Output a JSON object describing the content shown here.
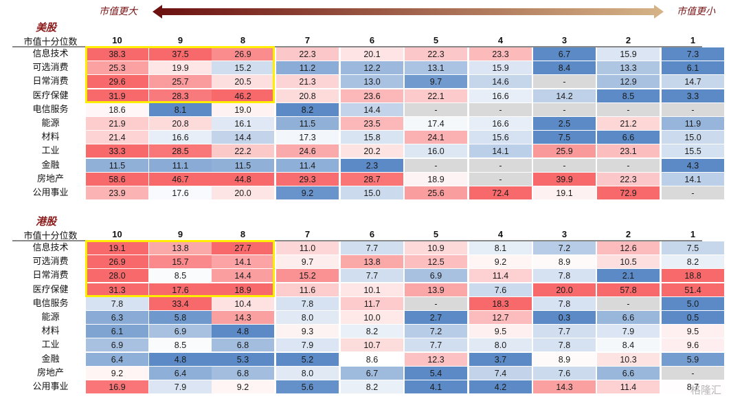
{
  "header": {
    "left_label": "市值更大",
    "right_label": "市值更小",
    "arrow_colors": [
      "#6b0f0f",
      "#d6b487"
    ]
  },
  "chart_data": [
    {
      "type": "heatmap",
      "title": "美股",
      "row_header": "市值十分位数",
      "columns": [
        "10",
        "9",
        "8",
        "7",
        "6",
        "5",
        "4",
        "3",
        "2",
        "1"
      ],
      "rows": [
        {
          "label": "信息技术",
          "values": [
            "38.3",
            "37.5",
            "26.9",
            "22.3",
            "20.1",
            "22.3",
            "23.3",
            "6.7",
            "15.9",
            "7.3"
          ]
        },
        {
          "label": "可选消费",
          "values": [
            "25.3",
            "19.9",
            "15.2",
            "11.2",
            "12.2",
            "13.1",
            "15.9",
            "8.4",
            "13.3",
            "6.1"
          ]
        },
        {
          "label": "日常消费",
          "values": [
            "29.6",
            "25.7",
            "20.5",
            "21.3",
            "13.0",
            "9.7",
            "14.6",
            "-",
            "12.9",
            "14.7"
          ]
        },
        {
          "label": "医疗保健",
          "values": [
            "31.9",
            "28.3",
            "46.2",
            "20.8",
            "23.6",
            "22.1",
            "16.6",
            "14.2",
            "8.5",
            "3.3"
          ]
        },
        {
          "label": "电信服务",
          "values": [
            "18.6",
            "8.1",
            "19.0",
            "8.2",
            "14.4",
            "-",
            "-",
            "-",
            "-",
            "-"
          ]
        },
        {
          "label": "能源",
          "values": [
            "21.9",
            "20.8",
            "16.1",
            "11.5",
            "23.5",
            "17.4",
            "16.6",
            "2.5",
            "21.2",
            "11.9"
          ]
        },
        {
          "label": "材料",
          "values": [
            "21.4",
            "16.6",
            "14.4",
            "17.3",
            "15.8",
            "24.1",
            "15.6",
            "7.5",
            "6.6",
            "15.0"
          ]
        },
        {
          "label": "工业",
          "values": [
            "33.3",
            "28.5",
            "22.2",
            "24.6",
            "20.2",
            "16.0",
            "14.1",
            "25.9",
            "23.1",
            "15.5"
          ]
        },
        {
          "label": "金融",
          "values": [
            "11.5",
            "11.1",
            "11.5",
            "11.4",
            "2.3",
            "-",
            "-",
            "-",
            "-",
            "4.3"
          ]
        },
        {
          "label": "房地产",
          "values": [
            "58.6",
            "46.7",
            "44.8",
            "29.3",
            "28.7",
            "18.9",
            "-",
            "39.9",
            "22.3",
            "14.1"
          ]
        },
        {
          "label": "公用事业",
          "values": [
            "23.9",
            "17.6",
            "20.0",
            "9.2",
            "15.0",
            "25.6",
            "72.4",
            "19.1",
            "72.9",
            "-"
          ]
        }
      ],
      "color_midpoint": 18,
      "color_low": "#5b8ac6",
      "color_mid": "#ffffff",
      "color_high": "#f8696b",
      "color_missing": "#d9d9d9",
      "highlight": {
        "rows": [
          "信息技术",
          "可选消费",
          "日常消费",
          "医疗保健"
        ],
        "columns": [
          "10",
          "9",
          "8"
        ],
        "color": "#ffee00"
      }
    },
    {
      "type": "heatmap",
      "title": "港股",
      "row_header": "市值十分位数",
      "columns": [
        "10",
        "9",
        "8",
        "7",
        "6",
        "5",
        "4",
        "3",
        "2",
        "1"
      ],
      "rows": [
        {
          "label": "信息技术",
          "values": [
            "19.1",
            "13.8",
            "27.7",
            "11.0",
            "7.7",
            "10.9",
            "8.1",
            "7.2",
            "12.6",
            "7.5"
          ]
        },
        {
          "label": "可选消费",
          "values": [
            "26.9",
            "15.7",
            "14.1",
            "9.7",
            "13.8",
            "12.5",
            "9.2",
            "8.9",
            "10.5",
            "8.2"
          ]
        },
        {
          "label": "日常消费",
          "values": [
            "28.0",
            "8.5",
            "14.4",
            "15.2",
            "7.7",
            "6.9",
            "11.4",
            "7.8",
            "2.1",
            "18.8"
          ]
        },
        {
          "label": "医疗保健",
          "values": [
            "31.3",
            "17.6",
            "18.9",
            "11.6",
            "10.1",
            "13.9",
            "7.6",
            "20.0",
            "57.8",
            "51.4"
          ]
        },
        {
          "label": "电信服务",
          "values": [
            "7.8",
            "33.4",
            "10.4",
            "7.8",
            "11.7",
            "-",
            "18.3",
            "7.8",
            "-",
            "5.0"
          ]
        },
        {
          "label": "能源",
          "values": [
            "6.3",
            "5.8",
            "14.3",
            "8.0",
            "10.0",
            "2.7",
            "12.7",
            "0.3",
            "6.6",
            "0.5"
          ]
        },
        {
          "label": "材料",
          "values": [
            "6.1",
            "6.9",
            "4.8",
            "9.3",
            "8.2",
            "7.2",
            "9.5",
            "7.7",
            "7.9",
            "9.5"
          ]
        },
        {
          "label": "工业",
          "values": [
            "6.9",
            "8.5",
            "6.8",
            "7.9",
            "10.7",
            "7.7",
            "8.0",
            "7.8",
            "8.4",
            "9.6"
          ]
        },
        {
          "label": "金融",
          "values": [
            "6.4",
            "4.8",
            "5.3",
            "5.2",
            "8.6",
            "12.3",
            "3.7",
            "8.9",
            "10.3",
            "5.9"
          ]
        },
        {
          "label": "房地产",
          "values": [
            "9.2",
            "6.4",
            "6.8",
            "8.0",
            "6.7",
            "5.4",
            "7.4",
            "7.6",
            "6.6",
            "-"
          ]
        },
        {
          "label": "公用事业",
          "values": [
            "16.9",
            "7.9",
            "9.2",
            "5.6",
            "8.2",
            "4.1",
            "4.2",
            "14.3",
            "11.4",
            "8.7"
          ]
        }
      ],
      "color_midpoint": 8.6,
      "color_low": "#5b8ac6",
      "color_mid": "#ffffff",
      "color_high": "#f8696b",
      "color_missing": "#d9d9d9",
      "highlight": {
        "rows": [
          "信息技术",
          "可选消费",
          "日常消费",
          "医疗保健"
        ],
        "columns": [
          "10",
          "9",
          "8"
        ],
        "color": "#ffee00"
      }
    }
  ],
  "watermark": "格隆汇"
}
